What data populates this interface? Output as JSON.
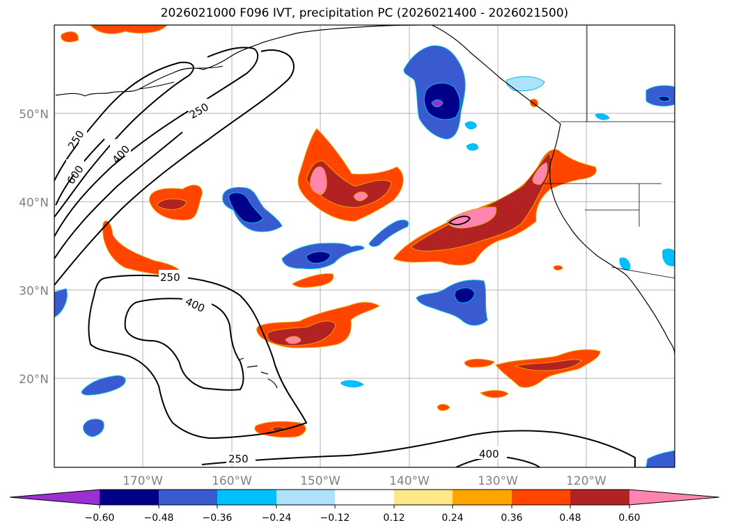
{
  "title": "2026021000 F096 IVT, precipitation PC (2026021400 - 2026021500)",
  "lat_labels": [
    "50°N",
    "40°N",
    "30°N",
    "20°N"
  ],
  "lon_labels": [
    "170°W",
    "160°W",
    "150°W",
    "140°W",
    "130°W",
    "120°W"
  ],
  "contour_labels": [
    "250",
    "600",
    "400",
    "250",
    "250",
    "400",
    "250",
    "400"
  ],
  "colorbar": {
    "colors": [
      "#9b30d0",
      "#00008b",
      "#3a5bd0",
      "#00bfff",
      "#ade2fa",
      "#ffffff",
      "#ffe88a",
      "#ffa500",
      "#ff4500",
      "#b22222",
      "#ff85b0"
    ],
    "tick_labels": [
      "−0.60",
      "−0.48",
      "−0.36",
      "−0.24",
      "−0.12",
      "0.12",
      "0.24",
      "0.36",
      "0.48",
      "0.60"
    ]
  }
}
